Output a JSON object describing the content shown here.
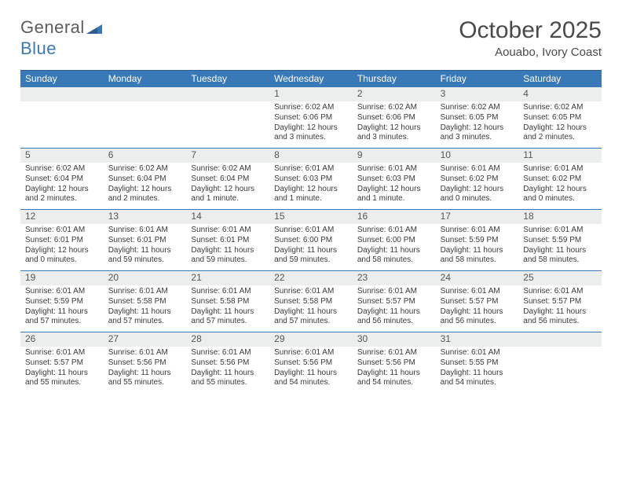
{
  "brand": {
    "part1": "General",
    "part2": "Blue"
  },
  "title": "October 2025",
  "location": "Aouabo, Ivory Coast",
  "colors": {
    "header_bg": "#3979b8",
    "header_border_top": "#2d5d8f",
    "week_border": "#3979b8",
    "daynum_bg": "#eceeee",
    "text": "#333333",
    "title_text": "#4a4a4a",
    "logo_gray": "#5c5c5c",
    "logo_blue": "#3979b8"
  },
  "weekday_labels": [
    "Sunday",
    "Monday",
    "Tuesday",
    "Wednesday",
    "Thursday",
    "Friday",
    "Saturday"
  ],
  "weeks": [
    [
      {
        "n": "",
        "empty": true
      },
      {
        "n": "",
        "empty": true
      },
      {
        "n": "",
        "empty": true
      },
      {
        "n": "1",
        "sunrise": "Sunrise: 6:02 AM",
        "sunset": "Sunset: 6:06 PM",
        "day1": "Daylight: 12 hours",
        "day2": "and 3 minutes."
      },
      {
        "n": "2",
        "sunrise": "Sunrise: 6:02 AM",
        "sunset": "Sunset: 6:06 PM",
        "day1": "Daylight: 12 hours",
        "day2": "and 3 minutes."
      },
      {
        "n": "3",
        "sunrise": "Sunrise: 6:02 AM",
        "sunset": "Sunset: 6:05 PM",
        "day1": "Daylight: 12 hours",
        "day2": "and 3 minutes."
      },
      {
        "n": "4",
        "sunrise": "Sunrise: 6:02 AM",
        "sunset": "Sunset: 6:05 PM",
        "day1": "Daylight: 12 hours",
        "day2": "and 2 minutes."
      }
    ],
    [
      {
        "n": "5",
        "sunrise": "Sunrise: 6:02 AM",
        "sunset": "Sunset: 6:04 PM",
        "day1": "Daylight: 12 hours",
        "day2": "and 2 minutes."
      },
      {
        "n": "6",
        "sunrise": "Sunrise: 6:02 AM",
        "sunset": "Sunset: 6:04 PM",
        "day1": "Daylight: 12 hours",
        "day2": "and 2 minutes."
      },
      {
        "n": "7",
        "sunrise": "Sunrise: 6:02 AM",
        "sunset": "Sunset: 6:04 PM",
        "day1": "Daylight: 12 hours",
        "day2": "and 1 minute."
      },
      {
        "n": "8",
        "sunrise": "Sunrise: 6:01 AM",
        "sunset": "Sunset: 6:03 PM",
        "day1": "Daylight: 12 hours",
        "day2": "and 1 minute."
      },
      {
        "n": "9",
        "sunrise": "Sunrise: 6:01 AM",
        "sunset": "Sunset: 6:03 PM",
        "day1": "Daylight: 12 hours",
        "day2": "and 1 minute."
      },
      {
        "n": "10",
        "sunrise": "Sunrise: 6:01 AM",
        "sunset": "Sunset: 6:02 PM",
        "day1": "Daylight: 12 hours",
        "day2": "and 0 minutes."
      },
      {
        "n": "11",
        "sunrise": "Sunrise: 6:01 AM",
        "sunset": "Sunset: 6:02 PM",
        "day1": "Daylight: 12 hours",
        "day2": "and 0 minutes."
      }
    ],
    [
      {
        "n": "12",
        "sunrise": "Sunrise: 6:01 AM",
        "sunset": "Sunset: 6:01 PM",
        "day1": "Daylight: 12 hours",
        "day2": "and 0 minutes."
      },
      {
        "n": "13",
        "sunrise": "Sunrise: 6:01 AM",
        "sunset": "Sunset: 6:01 PM",
        "day1": "Daylight: 11 hours",
        "day2": "and 59 minutes."
      },
      {
        "n": "14",
        "sunrise": "Sunrise: 6:01 AM",
        "sunset": "Sunset: 6:01 PM",
        "day1": "Daylight: 11 hours",
        "day2": "and 59 minutes."
      },
      {
        "n": "15",
        "sunrise": "Sunrise: 6:01 AM",
        "sunset": "Sunset: 6:00 PM",
        "day1": "Daylight: 11 hours",
        "day2": "and 59 minutes."
      },
      {
        "n": "16",
        "sunrise": "Sunrise: 6:01 AM",
        "sunset": "Sunset: 6:00 PM",
        "day1": "Daylight: 11 hours",
        "day2": "and 58 minutes."
      },
      {
        "n": "17",
        "sunrise": "Sunrise: 6:01 AM",
        "sunset": "Sunset: 5:59 PM",
        "day1": "Daylight: 11 hours",
        "day2": "and 58 minutes."
      },
      {
        "n": "18",
        "sunrise": "Sunrise: 6:01 AM",
        "sunset": "Sunset: 5:59 PM",
        "day1": "Daylight: 11 hours",
        "day2": "and 58 minutes."
      }
    ],
    [
      {
        "n": "19",
        "sunrise": "Sunrise: 6:01 AM",
        "sunset": "Sunset: 5:59 PM",
        "day1": "Daylight: 11 hours",
        "day2": "and 57 minutes."
      },
      {
        "n": "20",
        "sunrise": "Sunrise: 6:01 AM",
        "sunset": "Sunset: 5:58 PM",
        "day1": "Daylight: 11 hours",
        "day2": "and 57 minutes."
      },
      {
        "n": "21",
        "sunrise": "Sunrise: 6:01 AM",
        "sunset": "Sunset: 5:58 PM",
        "day1": "Daylight: 11 hours",
        "day2": "and 57 minutes."
      },
      {
        "n": "22",
        "sunrise": "Sunrise: 6:01 AM",
        "sunset": "Sunset: 5:58 PM",
        "day1": "Daylight: 11 hours",
        "day2": "and 57 minutes."
      },
      {
        "n": "23",
        "sunrise": "Sunrise: 6:01 AM",
        "sunset": "Sunset: 5:57 PM",
        "day1": "Daylight: 11 hours",
        "day2": "and 56 minutes."
      },
      {
        "n": "24",
        "sunrise": "Sunrise: 6:01 AM",
        "sunset": "Sunset: 5:57 PM",
        "day1": "Daylight: 11 hours",
        "day2": "and 56 minutes."
      },
      {
        "n": "25",
        "sunrise": "Sunrise: 6:01 AM",
        "sunset": "Sunset: 5:57 PM",
        "day1": "Daylight: 11 hours",
        "day2": "and 56 minutes."
      }
    ],
    [
      {
        "n": "26",
        "sunrise": "Sunrise: 6:01 AM",
        "sunset": "Sunset: 5:57 PM",
        "day1": "Daylight: 11 hours",
        "day2": "and 55 minutes."
      },
      {
        "n": "27",
        "sunrise": "Sunrise: 6:01 AM",
        "sunset": "Sunset: 5:56 PM",
        "day1": "Daylight: 11 hours",
        "day2": "and 55 minutes."
      },
      {
        "n": "28",
        "sunrise": "Sunrise: 6:01 AM",
        "sunset": "Sunset: 5:56 PM",
        "day1": "Daylight: 11 hours",
        "day2": "and 55 minutes."
      },
      {
        "n": "29",
        "sunrise": "Sunrise: 6:01 AM",
        "sunset": "Sunset: 5:56 PM",
        "day1": "Daylight: 11 hours",
        "day2": "and 54 minutes."
      },
      {
        "n": "30",
        "sunrise": "Sunrise: 6:01 AM",
        "sunset": "Sunset: 5:56 PM",
        "day1": "Daylight: 11 hours",
        "day2": "and 54 minutes."
      },
      {
        "n": "31",
        "sunrise": "Sunrise: 6:01 AM",
        "sunset": "Sunset: 5:55 PM",
        "day1": "Daylight: 11 hours",
        "day2": "and 54 minutes."
      },
      {
        "n": "",
        "empty": true
      }
    ]
  ]
}
